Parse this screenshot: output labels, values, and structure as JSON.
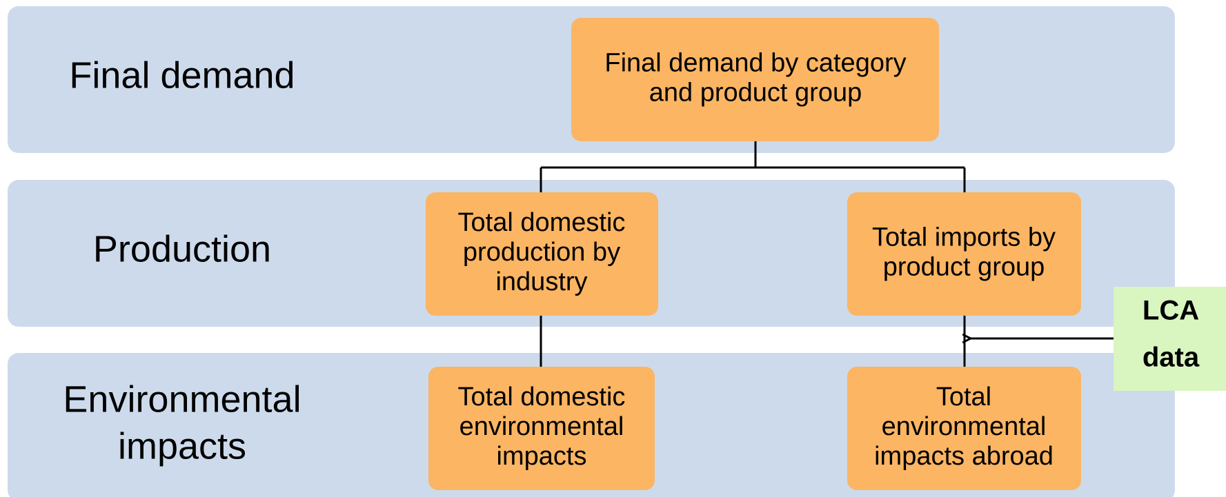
{
  "rows": [
    {
      "label": [
        "Final demand"
      ]
    },
    {
      "label": [
        "Production"
      ]
    },
    {
      "label": [
        "Environmental",
        "impacts"
      ]
    }
  ],
  "nodes": [
    {
      "label": [
        "Final demand by category",
        "and product group"
      ]
    },
    {
      "label": [
        "Total domestic",
        "production by",
        "industry"
      ]
    },
    {
      "label": [
        "Total imports by",
        "product group"
      ]
    },
    {
      "label": [
        "Total domestic",
        "environmental",
        "impacts"
      ]
    },
    {
      "label": [
        "Total",
        "environmental",
        "impacts abroad"
      ]
    }
  ],
  "source": {
    "label": [
      "LCA",
      "data"
    ]
  }
}
